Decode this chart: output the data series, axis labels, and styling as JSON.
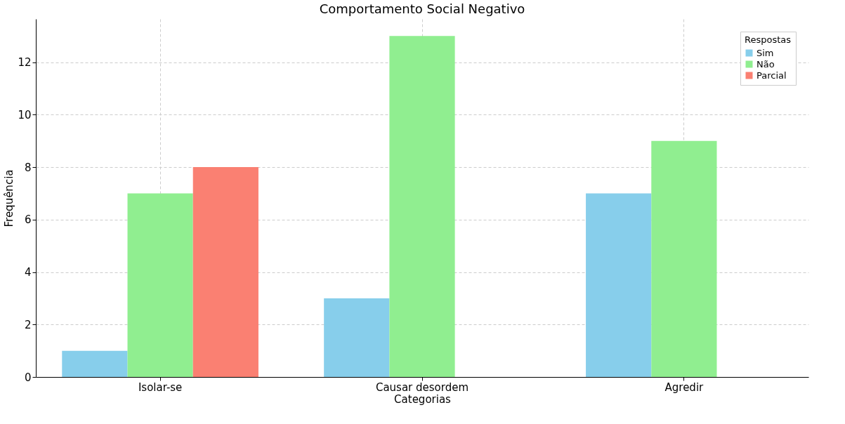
{
  "chart_data": {
    "type": "bar",
    "title": "Comportamento Social Negativo",
    "xlabel": "Categorias",
    "ylabel": "Frequência",
    "legend_title": "Respostas",
    "categories": [
      "Isolar-se",
      "Causar desordem",
      "Agredir"
    ],
    "series": [
      {
        "name": "Sim",
        "color": "#87ceeb",
        "values": [
          1,
          3,
          7
        ]
      },
      {
        "name": "Não",
        "color": "#90ee90",
        "values": [
          7,
          13,
          9
        ]
      },
      {
        "name": "Parcial",
        "color": "#fa8072",
        "values": [
          8,
          0,
          0
        ]
      }
    ],
    "ylim": [
      0,
      13.65
    ],
    "yticks": [
      0,
      2,
      4,
      6,
      8,
      10,
      12
    ],
    "grid": true,
    "legend": "top right"
  }
}
